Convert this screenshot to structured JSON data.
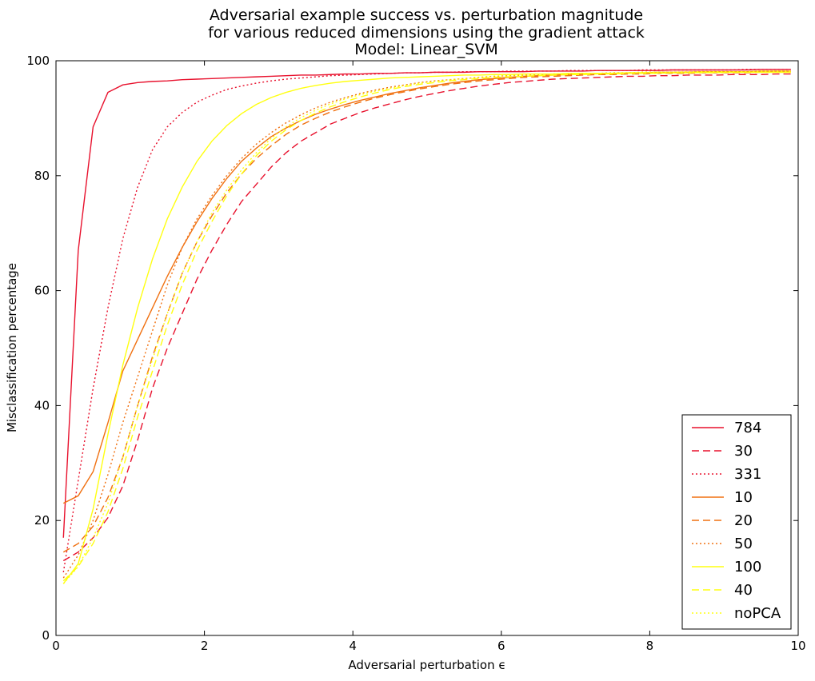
{
  "chart_data": {
    "type": "line",
    "title": [
      "Adversarial example success vs. perturbation magnitude",
      "for various reduced dimensions using the gradient attack",
      "Model: Linear_SVM"
    ],
    "xlabel": "Adversarial perturbation ϵ",
    "ylabel": "Misclassification percentage",
    "xlim": [
      0,
      10
    ],
    "ylim": [
      0,
      100
    ],
    "xticks": [
      0,
      2,
      4,
      6,
      8,
      10
    ],
    "yticks": [
      0,
      20,
      40,
      60,
      80,
      100
    ],
    "grid": false,
    "legend_position": "lower-right",
    "x": [
      0.1,
      0.3,
      0.5,
      0.7,
      0.9,
      1.1,
      1.3,
      1.5,
      1.7,
      1.9,
      2.1,
      2.3,
      2.5,
      2.7,
      2.9,
      3.1,
      3.3,
      3.5,
      3.7,
      3.9,
      4.1,
      4.3,
      4.5,
      4.7,
      4.9,
      5.1,
      5.3,
      5.5,
      5.7,
      5.9,
      6.1,
      6.3,
      6.5,
      6.7,
      6.9,
      7.1,
      7.3,
      7.5,
      7.7,
      7.9,
      8.1,
      8.3,
      8.5,
      8.7,
      8.9,
      9.1,
      9.3,
      9.5,
      9.7,
      9.9
    ],
    "series": [
      {
        "name": "784",
        "color": "#e8112d",
        "dash": "solid",
        "values": [
          17,
          67,
          88.5,
          94.5,
          95.8,
          96.2,
          96.4,
          96.5,
          96.7,
          96.8,
          96.9,
          97.0,
          97.1,
          97.2,
          97.3,
          97.4,
          97.5,
          97.5,
          97.6,
          97.7,
          97.7,
          97.8,
          97.8,
          97.9,
          97.9,
          98.0,
          98.0,
          98.0,
          98.1,
          98.1,
          98.1,
          98.1,
          98.2,
          98.2,
          98.2,
          98.2,
          98.3,
          98.3,
          98.3,
          98.3,
          98.3,
          98.4,
          98.4,
          98.4,
          98.4,
          98.4,
          98.4,
          98.5,
          98.5,
          98.5
        ]
      },
      {
        "name": "30",
        "color": "#e8112d",
        "dash": "dashed",
        "values": [
          13,
          14.5,
          17,
          20.5,
          26,
          34,
          43,
          50,
          56,
          62,
          67,
          71.5,
          75.5,
          78.5,
          81.5,
          84,
          86,
          87.5,
          89,
          90,
          91,
          91.8,
          92.5,
          93.2,
          93.8,
          94.3,
          94.8,
          95.2,
          95.6,
          95.9,
          96.2,
          96.4,
          96.6,
          96.8,
          96.9,
          97.0,
          97.1,
          97.2,
          97.3,
          97.3,
          97.4,
          97.4,
          97.5,
          97.5,
          97.5,
          97.6,
          97.6,
          97.6,
          97.7,
          97.7
        ]
      },
      {
        "name": "331",
        "color": "#e8112d",
        "dash": "dotted",
        "values": [
          11,
          27,
          43,
          57,
          69,
          78,
          84.5,
          88.5,
          91,
          92.8,
          94,
          95,
          95.6,
          96.1,
          96.5,
          96.8,
          97.0,
          97.2,
          97.4,
          97.5,
          97.6,
          97.7,
          97.8,
          97.9,
          97.9,
          98.0,
          98.0,
          98.1,
          98.1,
          98.1,
          98.2,
          98.2,
          98.2,
          98.2,
          98.3,
          98.3,
          98.3,
          98.3,
          98.3,
          98.4,
          98.4,
          98.4,
          98.4,
          98.4,
          98.4,
          98.4,
          98.5,
          98.5,
          98.5,
          98.5
        ]
      },
      {
        "name": "10",
        "color": "#f07010",
        "dash": "solid",
        "values": [
          23,
          24.3,
          28.5,
          37,
          46,
          51.5,
          57,
          62.5,
          67.5,
          72,
          76,
          79.5,
          82.5,
          84.8,
          86.8,
          88.3,
          89.6,
          90.7,
          91.6,
          92.4,
          93.1,
          93.7,
          94.3,
          94.8,
          95.3,
          95.7,
          96.1,
          96.4,
          96.7,
          96.9,
          97.1,
          97.3,
          97.4,
          97.5,
          97.6,
          97.7,
          97.8,
          97.8,
          97.9,
          97.9,
          98.0,
          98.0,
          98.0,
          98.1,
          98.1,
          98.1,
          98.1,
          98.2,
          98.2,
          98.2
        ]
      },
      {
        "name": "20",
        "color": "#f07010",
        "dash": "dashed",
        "values": [
          14.5,
          16,
          19,
          24,
          31,
          40,
          48.5,
          56,
          63,
          68.5,
          73,
          77,
          80.3,
          83,
          85.2,
          87.2,
          88.8,
          90,
          91.1,
          92,
          92.8,
          93.5,
          94.1,
          94.6,
          95.1,
          95.5,
          95.9,
          96.2,
          96.5,
          96.7,
          96.9,
          97.1,
          97.2,
          97.3,
          97.4,
          97.5,
          97.6,
          97.6,
          97.7,
          97.7,
          97.8,
          97.8,
          97.8,
          97.9,
          97.9,
          97.9,
          97.9,
          98.0,
          98.0,
          98.0
        ]
      },
      {
        "name": "50",
        "color": "#f07010",
        "dash": "dotted",
        "values": [
          10,
          14,
          20,
          28,
          37,
          45,
          53,
          61,
          67.5,
          72.5,
          76.5,
          80,
          83,
          85.5,
          87.5,
          89.2,
          90.6,
          91.8,
          92.8,
          93.6,
          94.3,
          94.9,
          95.4,
          95.8,
          96.2,
          96.5,
          96.7,
          96.9,
          97.1,
          97.3,
          97.4,
          97.5,
          97.6,
          97.7,
          97.7,
          97.8,
          97.8,
          97.9,
          97.9,
          98.0,
          98.0,
          98.0,
          98.0,
          98.1,
          98.1,
          98.1,
          98.1,
          98.1,
          98.2,
          98.2
        ]
      },
      {
        "name": "100",
        "color": "#ffff10",
        "dash": "solid",
        "values": [
          9,
          12.5,
          22,
          35,
          47,
          57,
          65.5,
          72.5,
          78,
          82.5,
          86,
          88.7,
          90.8,
          92.4,
          93.6,
          94.5,
          95.2,
          95.7,
          96.1,
          96.4,
          96.6,
          96.8,
          97.0,
          97.1,
          97.2,
          97.3,
          97.4,
          97.5,
          97.5,
          97.6,
          97.6,
          97.7,
          97.7,
          97.7,
          97.8,
          97.8,
          97.8,
          97.8,
          97.9,
          97.9,
          97.9,
          97.9,
          97.9,
          98.0,
          98.0,
          98.0,
          98.0,
          98.0,
          98.0,
          98.0
        ]
      },
      {
        "name": "40",
        "color": "#ffff10",
        "dash": "dashed",
        "values": [
          9.5,
          12,
          16,
          21.5,
          29,
          38,
          46,
          54,
          61,
          67,
          72,
          76.5,
          80.3,
          83.5,
          86,
          88,
          89.6,
          90.9,
          92,
          92.9,
          93.7,
          94.4,
          95,
          95.5,
          95.9,
          96.2,
          96.5,
          96.7,
          96.9,
          97.1,
          97.2,
          97.3,
          97.4,
          97.5,
          97.6,
          97.6,
          97.7,
          97.7,
          97.8,
          97.8,
          97.8,
          97.9,
          97.9,
          97.9,
          97.9,
          98.0,
          98.0,
          98.0,
          98.0,
          98.0
        ]
      },
      {
        "name": "noPCA",
        "color": "#ffff10",
        "dash": "dotted",
        "values": [
          9,
          12,
          17,
          23,
          31,
          40,
          48,
          56,
          63,
          68.5,
          73.5,
          77.5,
          81,
          84,
          86.5,
          88.5,
          90.1,
          91.4,
          92.5,
          93.4,
          94.1,
          94.7,
          95.2,
          95.7,
          96.1,
          96.4,
          96.7,
          96.9,
          97.1,
          97.3,
          97.4,
          97.5,
          97.6,
          97.7,
          97.7,
          97.8,
          97.8,
          97.9,
          97.9,
          98.0,
          98.0,
          98.0,
          98.1,
          98.1,
          98.1,
          98.1,
          98.1,
          98.2,
          98.2,
          98.2
        ]
      }
    ]
  }
}
